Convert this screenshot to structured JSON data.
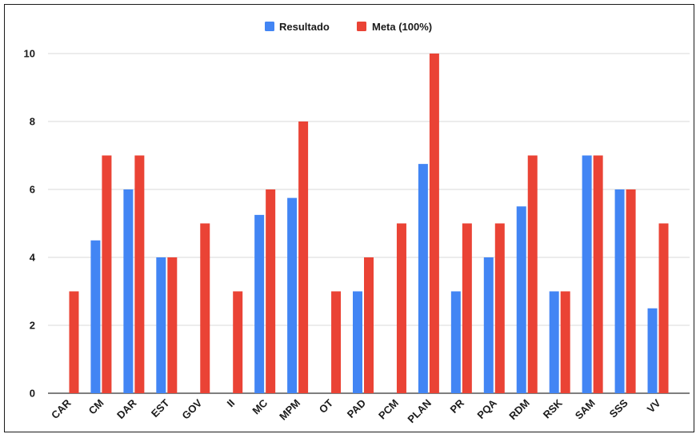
{
  "chart_data": {
    "type": "bar",
    "categories": [
      "CAR",
      "CM",
      "DAR",
      "EST",
      "GOV",
      "II",
      "MC",
      "MPM",
      "OT",
      "PAD",
      "PCM",
      "PLAN",
      "PR",
      "PQA",
      "RDM",
      "RSK",
      "SAM",
      "SSS",
      "VV"
    ],
    "series": [
      {
        "name": "Resultado",
        "color": "#4285f4",
        "values": [
          0,
          4.5,
          6,
          4,
          0,
          0,
          5.25,
          5.75,
          0,
          3,
          0,
          6.75,
          3,
          4,
          5.5,
          3,
          7,
          6,
          2.5
        ]
      },
      {
        "name": "Meta (100%)",
        "color": "#ea4335",
        "values": [
          3,
          7,
          7,
          4,
          5,
          3,
          6,
          8,
          3,
          4,
          5,
          10,
          5,
          5,
          7,
          3,
          7,
          6,
          5
        ]
      }
    ],
    "ylim": [
      0,
      10
    ],
    "yticks": [
      "0",
      "2",
      "4",
      "6",
      "8",
      "10"
    ],
    "title": "",
    "xlabel": "",
    "ylabel": "",
    "grid": true,
    "legend_position": "top-center"
  }
}
